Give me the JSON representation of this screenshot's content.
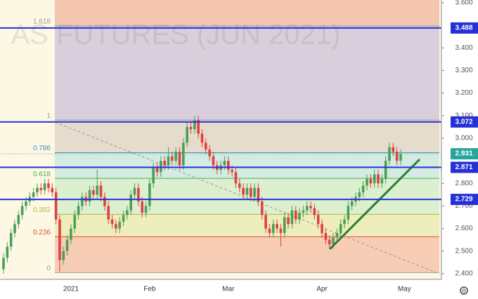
{
  "chart_data": {
    "type": "candlestick",
    "watermark": "AS FUTURES (JUN 2021)",
    "categories": [
      null,
      null,
      null,
      null,
      null,
      null,
      null,
      null,
      null,
      null,
      null,
      null,
      null,
      null,
      null,
      null,
      null,
      null,
      "2021",
      null,
      null,
      null,
      null,
      null,
      null,
      null,
      null,
      null,
      null,
      null,
      null,
      null,
      null,
      null,
      null,
      null,
      null,
      null,
      null,
      "Feb",
      null,
      null,
      null,
      null,
      null,
      null,
      null,
      null,
      null,
      null,
      null,
      null,
      null,
      null,
      null,
      null,
      null,
      null,
      null,
      null,
      "Mar",
      null,
      null,
      null,
      null,
      null,
      null,
      null,
      null,
      null,
      null,
      null,
      null,
      null,
      null,
      null,
      null,
      null,
      null,
      null,
      null,
      null,
      null,
      null,
      null,
      "Apr",
      null,
      null,
      null,
      null,
      null,
      null,
      null,
      null,
      null,
      null,
      null,
      null,
      null,
      null,
      null,
      null,
      null,
      null,
      null,
      null,
      null,
      "May"
    ],
    "open": [
      2.42,
      2.47,
      2.52,
      2.58,
      2.62,
      2.66,
      2.7,
      2.72,
      2.74,
      2.76,
      2.78,
      2.77,
      2.8,
      2.78,
      2.76,
      2.64,
      2.46,
      2.5,
      2.55,
      2.6,
      2.66,
      2.7,
      2.74,
      2.72,
      2.77,
      2.75,
      2.79,
      2.74,
      2.7,
      2.64,
      2.62,
      2.6,
      2.63,
      2.66,
      2.68,
      2.75,
      2.78,
      2.72,
      2.67,
      2.7,
      2.8,
      2.87,
      2.85,
      2.9,
      2.88,
      2.92,
      2.9,
      2.94,
      2.88,
      2.98,
      3.05,
      3.04,
      3.08,
      3.02,
      2.98,
      2.95,
      2.92,
      2.88,
      2.86,
      2.88,
      2.9,
      2.86,
      2.85,
      2.8,
      2.78,
      2.75,
      2.78,
      2.74,
      2.78,
      2.72,
      2.66,
      2.6,
      2.58,
      2.62,
      2.6,
      2.58,
      2.65,
      2.62,
      2.68,
      2.64,
      2.67,
      2.68,
      2.7,
      2.69,
      2.66,
      2.62,
      2.58,
      2.55,
      2.53,
      2.56,
      2.58,
      2.62,
      2.64,
      2.7,
      2.72,
      2.74,
      2.76,
      2.79,
      2.82,
      2.8,
      2.84,
      2.8,
      2.82,
      2.9,
      2.96,
      2.94,
      2.9,
      null
    ],
    "high": [
      2.49,
      2.54,
      2.6,
      2.64,
      2.68,
      2.72,
      2.74,
      2.76,
      2.78,
      2.8,
      2.8,
      2.82,
      2.82,
      2.8,
      2.78,
      2.66,
      2.52,
      2.57,
      2.62,
      2.68,
      2.72,
      2.76,
      2.76,
      2.79,
      2.79,
      2.86,
      2.81,
      2.76,
      2.72,
      2.66,
      2.64,
      2.65,
      2.68,
      2.7,
      2.77,
      2.8,
      2.8,
      2.74,
      2.72,
      2.82,
      2.89,
      2.89,
      2.92,
      2.92,
      2.96,
      2.94,
      2.96,
      2.96,
      3.0,
      3.07,
      3.07,
      3.1,
      3.1,
      3.04,
      3.0,
      2.97,
      2.94,
      2.9,
      2.9,
      2.92,
      2.92,
      2.88,
      2.87,
      2.82,
      2.8,
      2.8,
      2.8,
      2.8,
      2.8,
      2.74,
      2.68,
      2.62,
      2.64,
      2.64,
      2.62,
      2.67,
      2.67,
      2.7,
      2.7,
      2.69,
      2.7,
      2.72,
      2.72,
      2.71,
      2.68,
      2.64,
      2.6,
      2.57,
      2.58,
      2.6,
      2.64,
      2.66,
      2.72,
      2.74,
      2.76,
      2.78,
      2.81,
      2.84,
      2.84,
      2.86,
      2.86,
      2.84,
      2.92,
      2.98,
      2.98,
      2.96,
      2.95,
      null
    ],
    "low": [
      2.4,
      2.45,
      2.5,
      2.56,
      2.6,
      2.64,
      2.68,
      2.7,
      2.72,
      2.74,
      2.75,
      2.75,
      2.76,
      2.74,
      2.62,
      2.41,
      2.44,
      2.48,
      2.53,
      2.58,
      2.64,
      2.68,
      2.7,
      2.7,
      2.73,
      2.73,
      2.72,
      2.68,
      2.62,
      2.6,
      2.58,
      2.58,
      2.61,
      2.64,
      2.66,
      2.73,
      2.7,
      2.65,
      2.65,
      2.68,
      2.78,
      2.83,
      2.83,
      2.86,
      2.86,
      2.88,
      2.88,
      2.86,
      2.86,
      2.96,
      3.02,
      3.02,
      3.0,
      2.96,
      2.93,
      2.9,
      2.86,
      2.84,
      2.84,
      2.86,
      2.84,
      2.83,
      2.78,
      2.76,
      2.73,
      2.73,
      2.72,
      2.72,
      2.7,
      2.64,
      2.58,
      2.56,
      2.56,
      2.58,
      2.52,
      2.56,
      2.6,
      2.6,
      2.62,
      2.62,
      2.65,
      2.66,
      2.67,
      2.64,
      2.6,
      2.56,
      2.53,
      2.51,
      2.51,
      2.54,
      2.56,
      2.6,
      2.62,
      2.68,
      2.7,
      2.72,
      2.74,
      2.77,
      2.78,
      2.78,
      2.78,
      2.78,
      2.8,
      2.88,
      2.92,
      2.88,
      2.88,
      null
    ],
    "close": [
      2.47,
      2.52,
      2.58,
      2.62,
      2.66,
      2.7,
      2.72,
      2.74,
      2.76,
      2.78,
      2.77,
      2.8,
      2.78,
      2.76,
      2.64,
      2.46,
      2.5,
      2.55,
      2.6,
      2.66,
      2.7,
      2.74,
      2.72,
      2.77,
      2.75,
      2.79,
      2.74,
      2.7,
      2.64,
      2.62,
      2.6,
      2.63,
      2.66,
      2.68,
      2.75,
      2.78,
      2.72,
      2.67,
      2.7,
      2.8,
      2.87,
      2.85,
      2.9,
      2.88,
      2.92,
      2.9,
      2.94,
      2.88,
      2.98,
      3.05,
      3.04,
      3.08,
      3.02,
      2.98,
      2.95,
      2.92,
      2.88,
      2.86,
      2.88,
      2.9,
      2.86,
      2.85,
      2.8,
      2.78,
      2.75,
      2.78,
      2.74,
      2.78,
      2.72,
      2.66,
      2.6,
      2.58,
      2.62,
      2.6,
      2.58,
      2.65,
      2.62,
      2.68,
      2.64,
      2.67,
      2.68,
      2.7,
      2.69,
      2.66,
      2.62,
      2.58,
      2.55,
      2.53,
      2.56,
      2.58,
      2.62,
      2.64,
      2.7,
      2.72,
      2.74,
      2.76,
      2.79,
      2.82,
      2.8,
      2.84,
      2.8,
      2.82,
      2.9,
      2.96,
      2.94,
      2.9,
      2.93,
      null
    ],
    "up_color": "#4c9e58",
    "down_color": "#e0403f",
    "ylim": [
      2.375,
      3.612
    ],
    "yticks": [
      {
        "value": 2.4,
        "label": "2.400"
      },
      {
        "value": 2.5,
        "label": "2.500"
      },
      {
        "value": 2.6,
        "label": "2.600"
      },
      {
        "value": 2.7,
        "label": "2.700"
      },
      {
        "value": 2.8,
        "label": "2.800"
      },
      {
        "value": 3.0,
        "label": "3.000"
      },
      {
        "value": 3.1,
        "label": "3.100"
      },
      {
        "value": 3.2,
        "label": "3.200"
      },
      {
        "value": 3.3,
        "label": "3.300"
      },
      {
        "value": 3.4,
        "label": "3.400"
      },
      {
        "value": 3.6,
        "label": "3.600"
      }
    ],
    "fib_levels": [
      {
        "label": "0",
        "value": 2.405,
        "color": "#9a9a9a",
        "fill": "#f7cdb6"
      },
      {
        "label": "0.236",
        "value": 2.564,
        "color": "#e0503c",
        "fill": "#eeeebd"
      },
      {
        "label": "0.382",
        "value": 2.663,
        "color": "#b5b83a",
        "fill": "#dcefcf"
      },
      {
        "label": "0.618",
        "value": 2.822,
        "color": "#4caf50",
        "fill": "#d3ebe1"
      },
      {
        "label": "0.786",
        "value": 2.936,
        "color": "#4a90b8",
        "fill": "#e6dccd"
      },
      {
        "label": "1",
        "value": 3.08,
        "color": "#9a9a9a",
        "fill": "#d9cfdc"
      },
      {
        "label": "1.618",
        "value": 3.497,
        "color": "#9a9a9a",
        "fill": "#f4c6b0"
      }
    ],
    "levels": [
      {
        "value": 3.488,
        "label": "3.488",
        "color": "#2430d8"
      },
      {
        "value": 3.072,
        "label": "3.072",
        "color": "#2430d8"
      },
      {
        "value": 2.871,
        "label": "2.871",
        "color": "#2430d8"
      },
      {
        "value": 2.729,
        "label": "2.729",
        "color": "#2430d8"
      }
    ],
    "last_price": {
      "value": 2.931,
      "label": "2.931",
      "color": "#26a69a"
    }
  }
}
